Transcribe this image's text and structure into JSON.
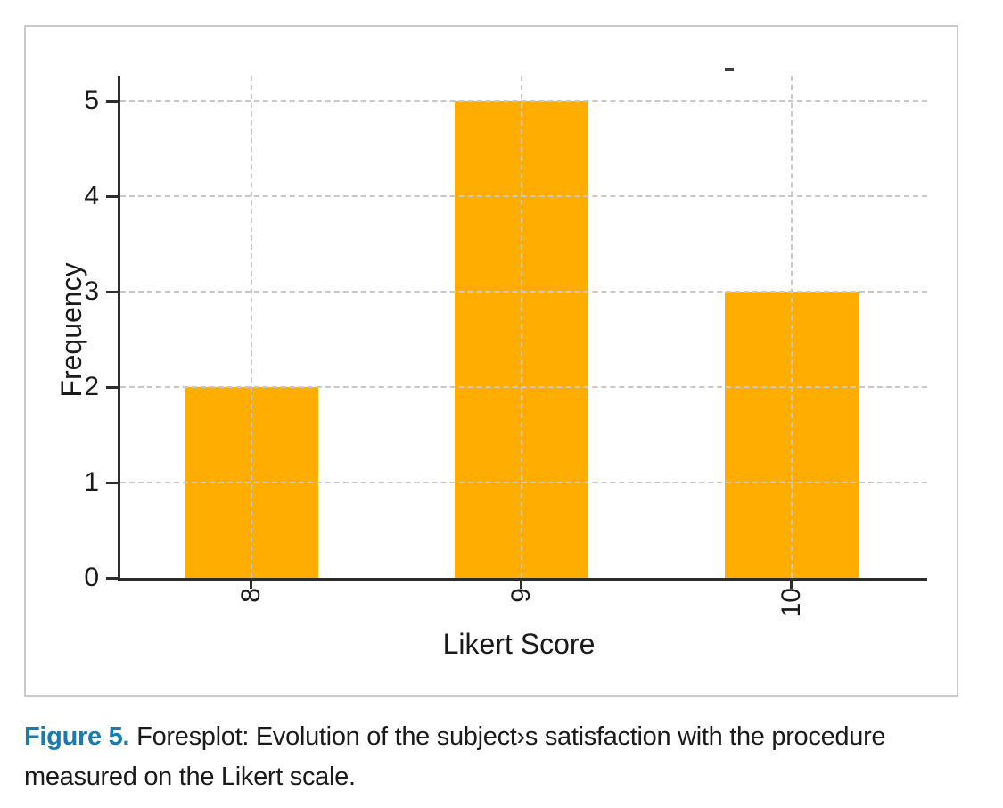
{
  "figure": {
    "caption": {
      "label": "Figure 5.",
      "text": "Foresplot: Evolution of the subject›s satisfaction with the procedure measured on the Likert scale."
    }
  },
  "chart_data": {
    "type": "bar",
    "categories": [
      "8",
      "9",
      "10"
    ],
    "values": [
      2,
      5,
      3
    ],
    "title": "",
    "xlabel": "Likert Score",
    "ylabel": "Frequency",
    "ylim": [
      0,
      5
    ],
    "yticks": [
      0,
      1,
      2,
      3,
      4,
      5
    ],
    "x_tick_label_rotation": 90,
    "grid": "dashed, horizontal at each y tick and vertical at each category, drawn over bars",
    "legend": "none",
    "bar_color": "#FFAD00",
    "axis_color": "#2d2d2d",
    "grid_color": "#c8c8c8",
    "text_color": "#1a1a1a",
    "panel_border_color": "#cacaca",
    "caption_label_color": "#1B7AAE"
  }
}
